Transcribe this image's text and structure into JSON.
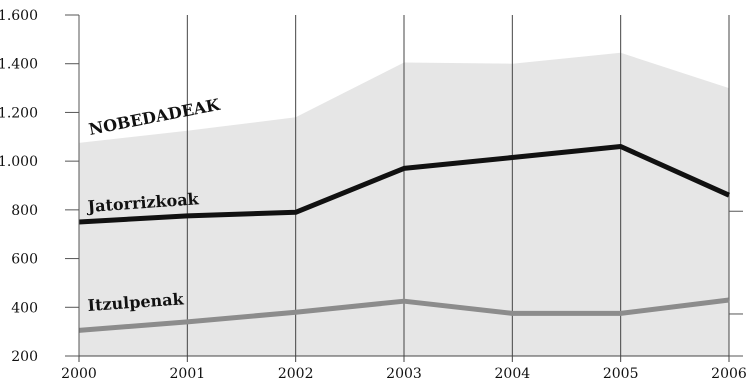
{
  "chart_data": {
    "type": "line",
    "title": "",
    "xlabel": "",
    "ylabel": "",
    "x": [
      "2000",
      "2001",
      "2002",
      "2003",
      "2004",
      "2005",
      "2006"
    ],
    "ylim": [
      200,
      1600
    ],
    "yticks": [
      200,
      400,
      600,
      800,
      1000,
      1200,
      1400,
      1600
    ],
    "ytick_labels": [
      "200",
      "400",
      "600",
      "800",
      "1.000",
      "1.200",
      "1.400",
      "1.600"
    ],
    "grid": "vertical",
    "series": [
      {
        "name": "NOBEDADEAK",
        "style": "area",
        "color": "#e6e6e6",
        "values": [
          1075,
          1125,
          1180,
          1405,
          1400,
          1445,
          1300
        ]
      },
      {
        "name": "Jatorrizkoak",
        "style": "line",
        "color": "#111111",
        "values": [
          750,
          775,
          790,
          970,
          1015,
          1060,
          860
        ]
      },
      {
        "name": "Itzulpenak",
        "style": "line",
        "color": "#8c8c8c",
        "values": [
          305,
          340,
          380,
          425,
          375,
          375,
          430
        ]
      }
    ]
  }
}
